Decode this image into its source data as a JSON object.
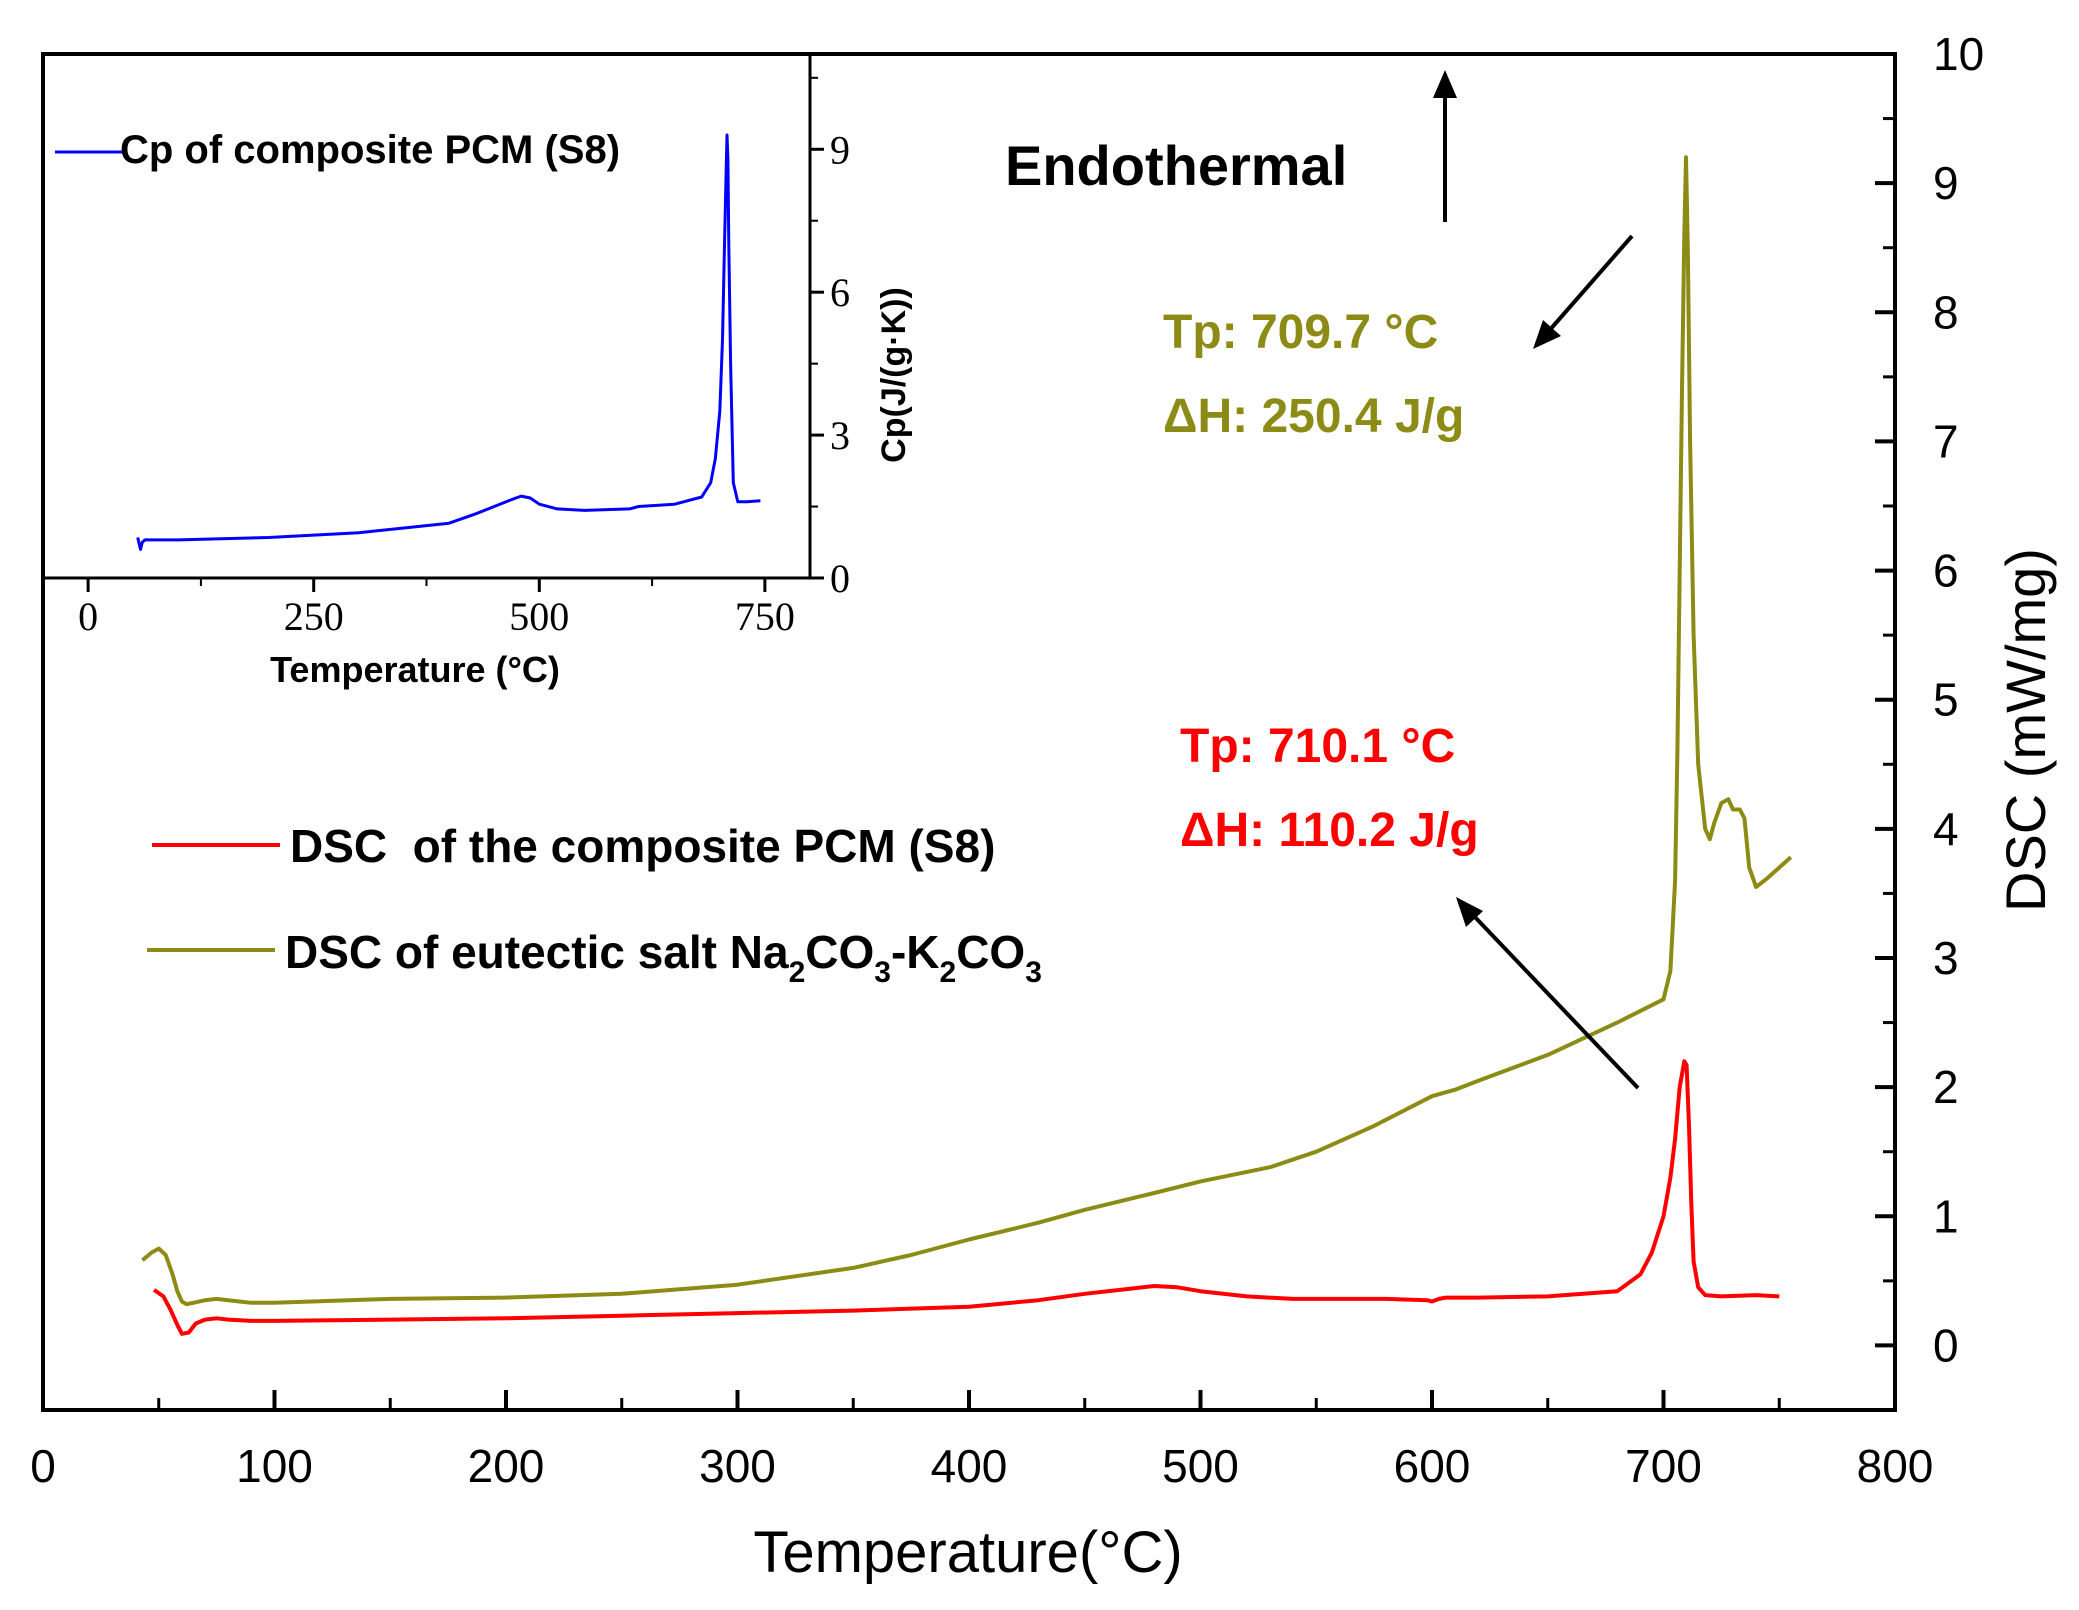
{
  "chart_data": [
    {
      "type": "line",
      "role": "main",
      "xlabel": "Temperature(°C)",
      "ylabel": "DSC (mW/mg)",
      "xlim": [
        0,
        800
      ],
      "ylim": [
        -0.5,
        10
      ],
      "x_ticks": [
        0,
        100,
        200,
        300,
        400,
        500,
        600,
        700,
        800
      ],
      "x_tick_labels": [
        "0",
        "100",
        "200",
        "300",
        "400",
        "500",
        "600",
        "700",
        "800"
      ],
      "y_ticks": [
        0,
        1,
        2,
        3,
        4,
        5,
        6,
        7,
        8,
        9,
        10
      ],
      "y_tick_labels": [
        "0",
        "1",
        "2",
        "3",
        "4",
        "5",
        "6",
        "7",
        "8",
        "9",
        "10"
      ],
      "grid": false,
      "legend_position": "middle-left",
      "series": [
        {
          "name": "DSC  of the composite PCM (S8)",
          "color": "#ff0000",
          "x": [
            48,
            52,
            55,
            58,
            60,
            63,
            66,
            70,
            75,
            80,
            90,
            100,
            150,
            200,
            250,
            300,
            350,
            400,
            430,
            450,
            470,
            480,
            490,
            500,
            520,
            540,
            560,
            580,
            598,
            600,
            603,
            606,
            620,
            650,
            680,
            690,
            695,
            700,
            703,
            705,
            707,
            709,
            710,
            711,
            712,
            713,
            715,
            718,
            725,
            740,
            750
          ],
          "y": [
            0.43,
            0.38,
            0.28,
            0.16,
            0.09,
            0.1,
            0.17,
            0.2,
            0.21,
            0.2,
            0.19,
            0.19,
            0.2,
            0.21,
            0.23,
            0.25,
            0.27,
            0.3,
            0.35,
            0.4,
            0.44,
            0.46,
            0.45,
            0.42,
            0.38,
            0.36,
            0.36,
            0.36,
            0.35,
            0.34,
            0.36,
            0.37,
            0.37,
            0.38,
            0.42,
            0.55,
            0.72,
            1.0,
            1.3,
            1.6,
            2.0,
            2.2,
            2.17,
            1.7,
            1.1,
            0.65,
            0.45,
            0.39,
            0.38,
            0.39,
            0.38
          ]
        },
        {
          "name": "DSC of eutectic salt Na2CO3-K2CO3",
          "label_main": "DSC of eutectic salt Na",
          "label_sub1": "2",
          "label_mid1": "CO",
          "label_sub2": "3",
          "label_mid2": "-K",
          "label_sub3": "2",
          "label_mid3": "CO",
          "label_sub4": "3",
          "color": "#8b8b16",
          "x": [
            43,
            47,
            50,
            53,
            56,
            58,
            60,
            62,
            65,
            70,
            75,
            80,
            90,
            100,
            150,
            200,
            250,
            300,
            350,
            375,
            400,
            430,
            450,
            480,
            500,
            530,
            550,
            575,
            600,
            610,
            620,
            650,
            680,
            700,
            703,
            705,
            706,
            707,
            708,
            709,
            709.7,
            710.5,
            711.5,
            713,
            715,
            718,
            720,
            722,
            725,
            728,
            730,
            733,
            735,
            737,
            740,
            745,
            755
          ],
          "y": [
            0.66,
            0.72,
            0.75,
            0.7,
            0.55,
            0.42,
            0.34,
            0.32,
            0.33,
            0.35,
            0.36,
            0.35,
            0.33,
            0.33,
            0.36,
            0.37,
            0.4,
            0.47,
            0.6,
            0.7,
            0.82,
            0.95,
            1.05,
            1.18,
            1.27,
            1.38,
            1.5,
            1.7,
            1.93,
            1.98,
            2.05,
            2.25,
            2.5,
            2.68,
            2.9,
            3.6,
            4.6,
            6.0,
            7.4,
            8.6,
            9.2,
            8.5,
            7.0,
            5.5,
            4.5,
            4.0,
            3.92,
            4.05,
            4.2,
            4.23,
            4.15,
            4.15,
            4.08,
            3.7,
            3.55,
            3.62,
            3.78
          ]
        }
      ],
      "annotations": [
        {
          "text": "Endothermal",
          "color": "#000000",
          "has_arrow": true,
          "arrow": "up"
        },
        {
          "text": "Tp: 709.7 °C",
          "color": "#8b8b16",
          "has_arrow": true,
          "arrow": "down-left"
        },
        {
          "text": "ΔH: 250.4 J/g",
          "color": "#8b8b16",
          "has_arrow": false
        },
        {
          "text": "Tp: 710.1 °C",
          "color": "#ff0000",
          "has_arrow": true,
          "arrow": "up-left"
        },
        {
          "text": "ΔH: 110.2 J/g",
          "color": "#ff0000",
          "has_arrow": false
        }
      ]
    },
    {
      "type": "line",
      "role": "inset",
      "xlabel": "Temperature (°C)",
      "ylabel": "Cp(J/(g·K))",
      "xlim": [
        -50,
        800
      ],
      "ylim": [
        0,
        11
      ],
      "x_ticks": [
        0,
        250,
        500,
        750
      ],
      "x_tick_labels": [
        "0",
        "250",
        "500",
        "750"
      ],
      "y_ticks": [
        0,
        3,
        6,
        9
      ],
      "y_tick_labels": [
        "0",
        "3",
        "6",
        "9"
      ],
      "grid": false,
      "legend_position": "top-left",
      "series": [
        {
          "name": "Cp of composite PCM (S8)",
          "color": "#0000ff",
          "x": [
            55,
            58,
            60,
            63,
            70,
            100,
            200,
            300,
            350,
            400,
            430,
            450,
            470,
            480,
            490,
            500,
            520,
            550,
            600,
            610,
            650,
            680,
            690,
            695,
            700,
            703,
            705,
            707,
            708,
            709,
            710,
            712,
            715,
            720,
            730,
            745
          ],
          "y": [
            0.85,
            0.6,
            0.75,
            0.8,
            0.8,
            0.8,
            0.85,
            0.95,
            1.05,
            1.15,
            1.35,
            1.5,
            1.65,
            1.72,
            1.68,
            1.55,
            1.45,
            1.42,
            1.45,
            1.5,
            1.55,
            1.7,
            2.0,
            2.5,
            3.5,
            5.0,
            6.8,
            8.5,
            9.3,
            8.8,
            7.0,
            4.5,
            2.0,
            1.6,
            1.6,
            1.62
          ]
        }
      ]
    }
  ]
}
